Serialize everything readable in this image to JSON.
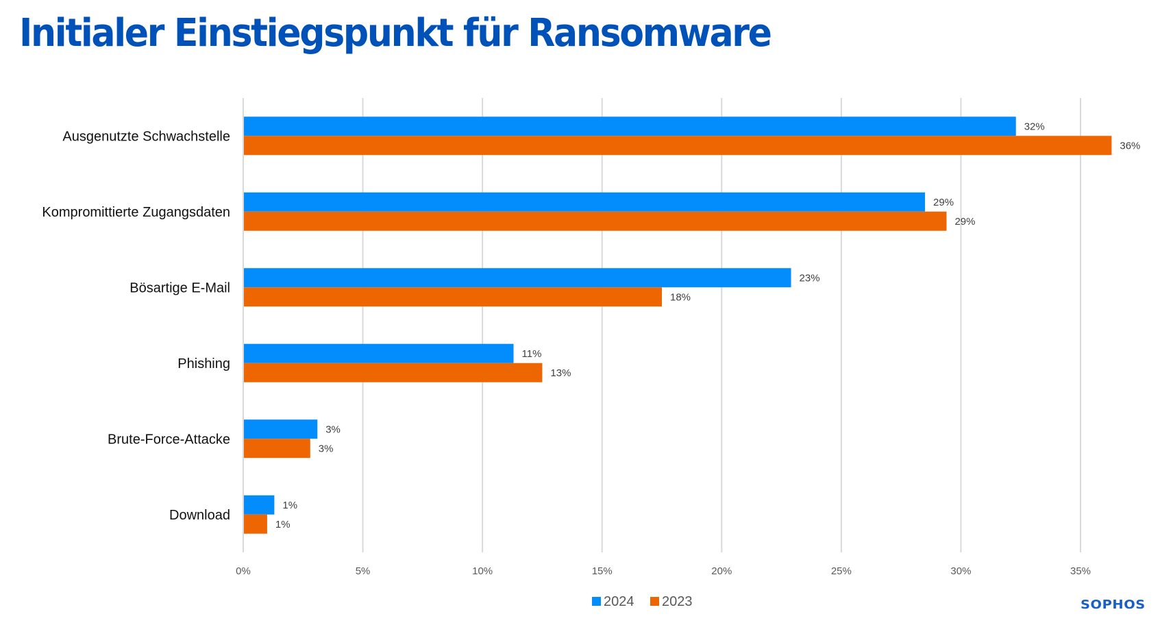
{
  "page": {
    "title": "Initialer Einstiegspunkt für Ransomware",
    "brand_logo": "SOPHOS"
  },
  "colors": {
    "title": "#0051b8",
    "series_2024": "#038cfc",
    "series_2023": "#ee6602",
    "gridline": "#d9d9d9",
    "logo": "#1a5fc8"
  },
  "chart_data": {
    "type": "bar",
    "orientation": "horizontal",
    "title": "Initialer Einstiegspunkt für Ransomware",
    "xlabel": "",
    "ylabel": "",
    "xlim": [
      0,
      37.5
    ],
    "x_ticks": [
      0,
      5,
      10,
      15,
      20,
      25,
      30,
      35
    ],
    "x_tick_labels": [
      "0%",
      "5%",
      "10%",
      "15%",
      "20%",
      "25%",
      "30%",
      "35%"
    ],
    "grid": "vertical",
    "legend_position": "bottom-center",
    "categories": [
      "Ausgenutzte Schwachstelle",
      "Kompromittierte Zugangsdaten",
      "Bösartige E-Mail",
      "Phishing",
      "Brute-Force-Attacke",
      "Download"
    ],
    "series": [
      {
        "name": "2024",
        "color": "#038cfc",
        "values": [
          32.3,
          28.5,
          22.9,
          11.3,
          3.1,
          1.3
        ],
        "labels": [
          "32%",
          "29%",
          "23%",
          "11%",
          "3%",
          "1%"
        ]
      },
      {
        "name": "2023",
        "color": "#ee6602",
        "values": [
          36.3,
          29.4,
          17.5,
          12.5,
          2.8,
          1.0
        ],
        "labels": [
          "36%",
          "29%",
          "18%",
          "13%",
          "3%",
          "1%"
        ]
      }
    ]
  }
}
